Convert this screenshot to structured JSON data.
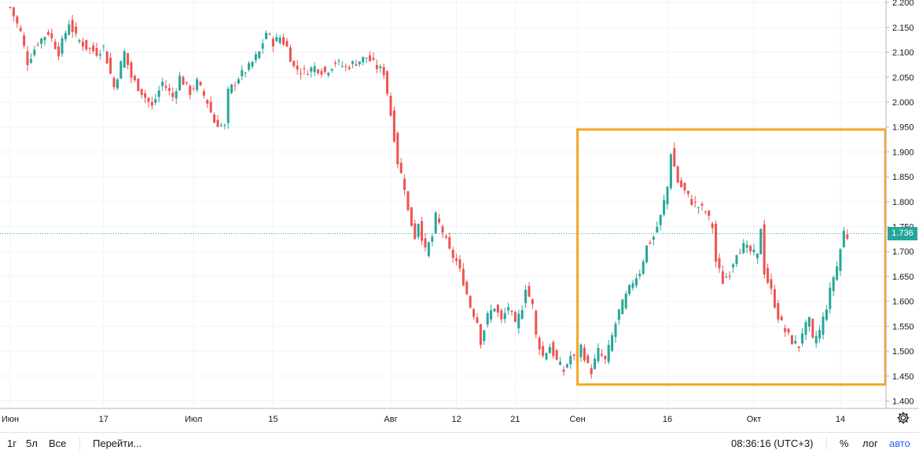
{
  "chart_data": {
    "type": "candlestick",
    "x_ticks": [
      "Июн",
      "17",
      "Июл",
      "15",
      "Авг",
      "12",
      "21",
      "Сен",
      "16",
      "Окт",
      "14"
    ],
    "y_ticks": [
      "2.200",
      "2.150",
      "2.100",
      "2.050",
      "2.000",
      "1.950",
      "1.900",
      "1.850",
      "1.800",
      "1.750",
      "1.700",
      "1.650",
      "1.600",
      "1.550",
      "1.500",
      "1.450",
      "1.400"
    ],
    "ylim": [
      1.385,
      2.205
    ],
    "last_price": "1.736",
    "close_path": [
      [
        0,
        2.19
      ],
      [
        3,
        2.14
      ],
      [
        5,
        2.08
      ],
      [
        8,
        2.12
      ],
      [
        11,
        2.14
      ],
      [
        14,
        2.1
      ],
      [
        17,
        2.16
      ],
      [
        19,
        2.13
      ],
      [
        22,
        2.11
      ],
      [
        25,
        2.1
      ],
      [
        27,
        2.11
      ],
      [
        30,
        2.03
      ],
      [
        33,
        2.1
      ],
      [
        35,
        2.05
      ],
      [
        38,
        2.02
      ],
      [
        41,
        1.99
      ],
      [
        44,
        2.04
      ],
      [
        47,
        2.01
      ],
      [
        49,
        2.05
      ],
      [
        52,
        2.02
      ],
      [
        54,
        2.04
      ],
      [
        57,
        2.0
      ],
      [
        59,
        1.96
      ],
      [
        62,
        1.95
      ],
      [
        63,
        2.02
      ],
      [
        66,
        2.05
      ],
      [
        69,
        2.07
      ],
      [
        72,
        2.1
      ],
      [
        74,
        2.14
      ],
      [
        76,
        2.12
      ],
      [
        78,
        2.13
      ],
      [
        80,
        2.11
      ],
      [
        82,
        2.07
      ],
      [
        85,
        2.06
      ],
      [
        88,
        2.07
      ],
      [
        91,
        2.06
      ],
      [
        94,
        2.08
      ],
      [
        97,
        2.07
      ],
      [
        100,
        2.08
      ],
      [
        103,
        2.09
      ],
      [
        106,
        2.07
      ],
      [
        108,
        2.06
      ],
      [
        109,
        2.02
      ],
      [
        111,
        1.93
      ],
      [
        112,
        1.88
      ],
      [
        114,
        1.83
      ],
      [
        115,
        1.78
      ],
      [
        117,
        1.73
      ],
      [
        118,
        1.76
      ],
      [
        120,
        1.7
      ],
      [
        122,
        1.73
      ],
      [
        123,
        1.77
      ],
      [
        125,
        1.74
      ],
      [
        127,
        1.7
      ],
      [
        129,
        1.68
      ],
      [
        131,
        1.64
      ],
      [
        133,
        1.59
      ],
      [
        135,
        1.56
      ],
      [
        136,
        1.52
      ],
      [
        138,
        1.57
      ],
      [
        140,
        1.59
      ],
      [
        142,
        1.56
      ],
      [
        144,
        1.59
      ],
      [
        146,
        1.55
      ],
      [
        148,
        1.59
      ],
      [
        149,
        1.63
      ],
      [
        151,
        1.59
      ],
      [
        152,
        1.53
      ],
      [
        154,
        1.49
      ],
      [
        156,
        1.51
      ],
      [
        158,
        1.48
      ],
      [
        160,
        1.46
      ],
      [
        162,
        1.49
      ],
      [
        164,
        1.48
      ],
      [
        165,
        1.51
      ],
      [
        167,
        1.47
      ],
      [
        168,
        1.46
      ],
      [
        170,
        1.5
      ],
      [
        172,
        1.48
      ],
      [
        174,
        1.53
      ],
      [
        176,
        1.58
      ],
      [
        178,
        1.61
      ],
      [
        180,
        1.64
      ],
      [
        182,
        1.66
      ],
      [
        184,
        1.71
      ],
      [
        186,
        1.73
      ],
      [
        188,
        1.77
      ],
      [
        190,
        1.83
      ],
      [
        191,
        1.9
      ],
      [
        193,
        1.84
      ],
      [
        195,
        1.82
      ],
      [
        197,
        1.8
      ],
      [
        199,
        1.79
      ],
      [
        201,
        1.78
      ],
      [
        203,
        1.75
      ],
      [
        204,
        1.68
      ],
      [
        206,
        1.64
      ],
      [
        208,
        1.66
      ],
      [
        210,
        1.7
      ],
      [
        212,
        1.71
      ],
      [
        214,
        1.7
      ],
      [
        216,
        1.69
      ],
      [
        217,
        1.75
      ],
      [
        218,
        1.66
      ],
      [
        220,
        1.62
      ],
      [
        222,
        1.57
      ],
      [
        224,
        1.54
      ],
      [
        226,
        1.52
      ],
      [
        228,
        1.51
      ],
      [
        229,
        1.54
      ],
      [
        231,
        1.56
      ],
      [
        232,
        1.52
      ],
      [
        234,
        1.54
      ],
      [
        236,
        1.59
      ],
      [
        238,
        1.65
      ],
      [
        239,
        1.67
      ],
      [
        241,
        1.74
      ],
      [
        242,
        1.73
      ]
    ],
    "highlight_box": {
      "x_from": 164,
      "x_to": 253,
      "y_from": 1.433,
      "y_to": 1.945
    }
  },
  "bottom_bar": {
    "ranges": [
      "1г",
      "5л",
      "Все"
    ],
    "goto": "Перейти...",
    "time": "08:36:16 (UTC+3)",
    "percent": "%",
    "log": "лог",
    "auto": "авто"
  },
  "colors": {
    "up": "#26a69a",
    "down": "#ef5350",
    "box": "#f6a623",
    "grid": "#f0f3fa",
    "price_line": "#26a69a",
    "auto_active": "#2962ff"
  },
  "icons": {
    "settings": "gear-icon"
  }
}
